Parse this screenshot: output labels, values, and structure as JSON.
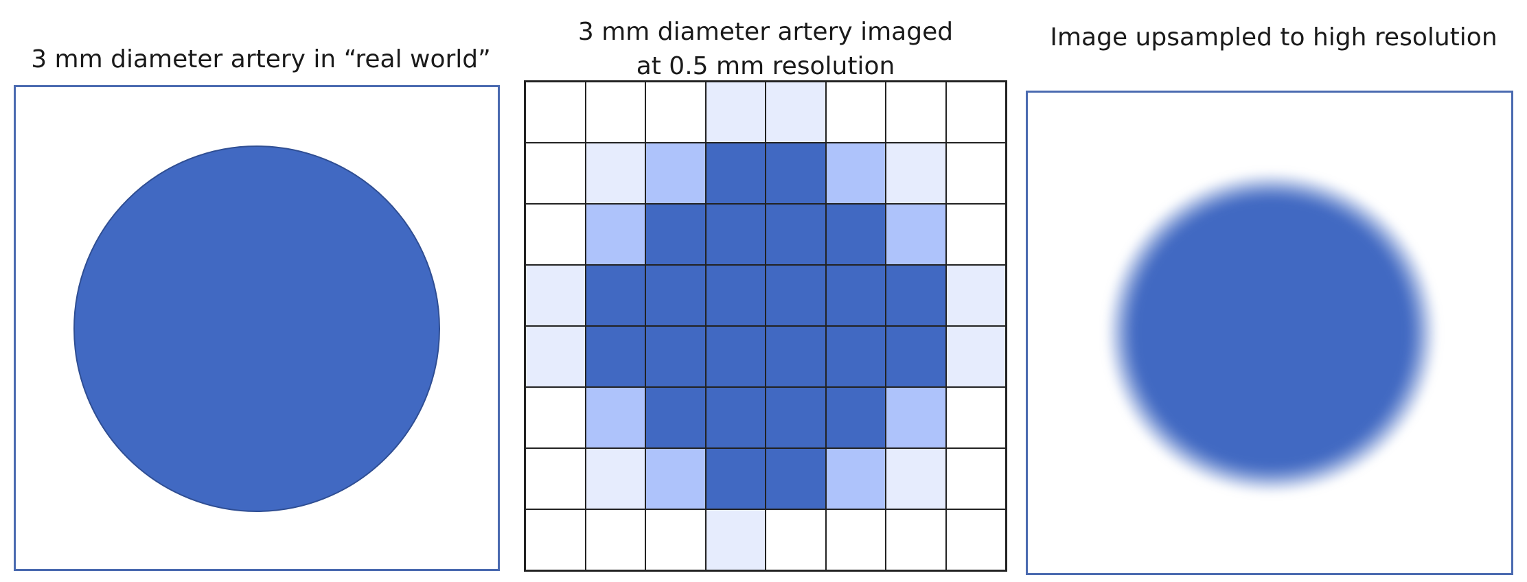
{
  "panels": {
    "left": {
      "title": "3 mm diameter artery in “real world”"
    },
    "middle": {
      "title_line1": "3 mm diameter artery imaged",
      "title_line2": "at 0.5 mm resolution",
      "grid": {
        "rows": 8,
        "cols": 8,
        "levels": [
          [
            0,
            0,
            0,
            1,
            1,
            0,
            0,
            0
          ],
          [
            0,
            1,
            2,
            3,
            3,
            2,
            1,
            0
          ],
          [
            0,
            2,
            3,
            3,
            3,
            3,
            2,
            0
          ],
          [
            1,
            3,
            3,
            3,
            3,
            3,
            3,
            1
          ],
          [
            1,
            3,
            3,
            3,
            3,
            3,
            3,
            1
          ],
          [
            0,
            2,
            3,
            3,
            3,
            3,
            2,
            0
          ],
          [
            0,
            1,
            2,
            3,
            3,
            2,
            1,
            0
          ],
          [
            0,
            0,
            0,
            1,
            0,
            0,
            0,
            0
          ]
        ]
      }
    },
    "right": {
      "title": "Image upsampled to high resolution"
    }
  },
  "colors": {
    "artery": "#4169c2",
    "level_0": "#ffffff",
    "level_1": "#e6ecfd",
    "level_2": "#aec3fb",
    "level_3": "#4169c2",
    "frame": "#4a6ab0"
  }
}
